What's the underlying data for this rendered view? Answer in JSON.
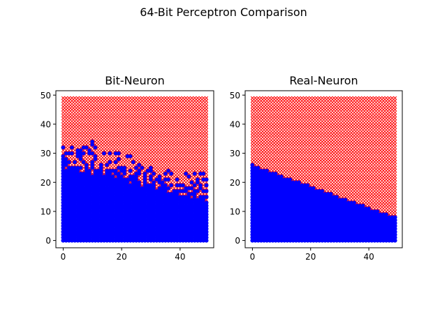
{
  "figure": {
    "suptitle": "64-Bit Perceptron Comparison"
  },
  "chart_data": [
    {
      "type": "scatter",
      "title": "Bit-Neuron",
      "xlabel": "",
      "ylabel": "",
      "xlim": [
        -2.5,
        51.5
      ],
      "ylim": [
        -2.5,
        51.5
      ],
      "xticks": [
        0,
        20,
        40
      ],
      "yticks": [
        0,
        10,
        20,
        30,
        40,
        50
      ],
      "grid": false,
      "grid_points": {
        "x": [
          0,
          49
        ],
        "y": [
          0,
          49
        ],
        "step": 1
      },
      "series": [
        {
          "marker": "x",
          "color": "#ff0000",
          "class_rule": "above boundary"
        },
        {
          "marker": "o",
          "color": "#0000ff",
          "class_rule": "below boundary"
        }
      ],
      "boundary_kind": "ragged",
      "boundary": {
        "x": [
          0,
          10,
          20,
          30,
          40,
          49
        ],
        "y": [
          26,
          25,
          22,
          19,
          17,
          16
        ]
      },
      "noise_band": [
        5,
        12
      ]
    },
    {
      "type": "scatter",
      "title": "Real-Neuron",
      "xlabel": "",
      "ylabel": "",
      "xlim": [
        -2.5,
        51.5
      ],
      "ylim": [
        -2.5,
        51.5
      ],
      "xticks": [
        0,
        20,
        40
      ],
      "yticks": [
        0,
        10,
        20,
        30,
        40,
        50
      ],
      "grid": false,
      "grid_points": {
        "x": [
          0,
          49
        ],
        "y": [
          0,
          49
        ],
        "step": 1
      },
      "series": [
        {
          "marker": "x",
          "color": "#ff0000",
          "class_rule": "above boundary"
        },
        {
          "marker": "o",
          "color": "#0000ff",
          "class_rule": "below boundary"
        }
      ],
      "boundary_kind": "linear",
      "boundary": {
        "x": [
          0,
          49
        ],
        "y": [
          26,
          8
        ]
      }
    }
  ]
}
